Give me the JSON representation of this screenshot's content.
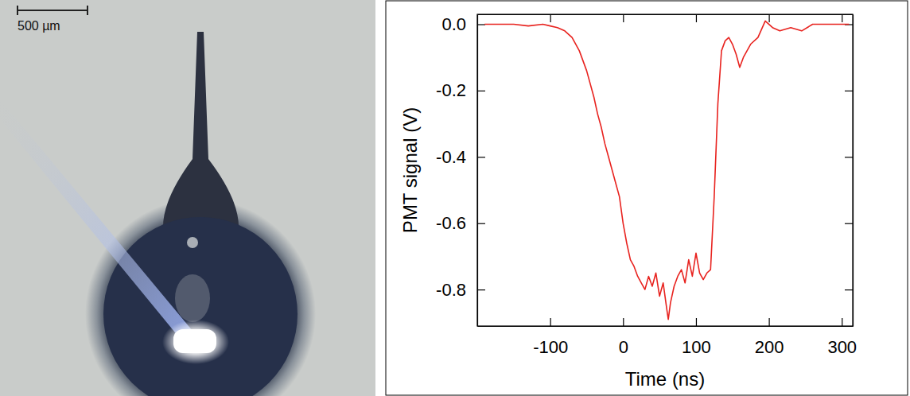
{
  "image": {
    "scale_bar_label": "500 µm"
  },
  "chart_data": {
    "type": "line",
    "x_label": "Time (ns)",
    "y_label": "PMT signal (V)",
    "xlim": [
      -200,
      315
    ],
    "ylim": [
      -0.91,
      0.03
    ],
    "xticks": [
      -100,
      0,
      100,
      200,
      300
    ],
    "yticks": [
      {
        "value": 0,
        "label": "0.0"
      },
      -0.2,
      -0.4,
      -0.6,
      -0.8
    ],
    "grid": false,
    "series": [
      {
        "name": "PMT signal",
        "color": "#e8231f",
        "x": [
          -190,
          -170,
          -150,
          -130,
          -110,
          -100,
          -90,
          -80,
          -70,
          -60,
          -50,
          -40,
          -35,
          -30,
          -25,
          -20,
          -15,
          -10,
          -5,
          0,
          5,
          10,
          15,
          20,
          25,
          30,
          35,
          40,
          45,
          50,
          55,
          60,
          62,
          65,
          70,
          75,
          80,
          85,
          90,
          95,
          100,
          105,
          110,
          115,
          120,
          125,
          130,
          135,
          140,
          145,
          150,
          155,
          160,
          165,
          170,
          175,
          185,
          195,
          205,
          215,
          230,
          245,
          260,
          280,
          300,
          310
        ],
        "values": [
          0,
          0,
          0,
          -0.005,
          0,
          -0.005,
          -0.01,
          -0.02,
          -0.04,
          -0.08,
          -0.14,
          -0.22,
          -0.27,
          -0.31,
          -0.36,
          -0.4,
          -0.44,
          -0.48,
          -0.52,
          -0.6,
          -0.66,
          -0.71,
          -0.73,
          -0.76,
          -0.78,
          -0.8,
          -0.76,
          -0.79,
          -0.75,
          -0.82,
          -0.78,
          -0.86,
          -0.89,
          -0.84,
          -0.79,
          -0.76,
          -0.74,
          -0.78,
          -0.71,
          -0.76,
          -0.69,
          -0.75,
          -0.77,
          -0.75,
          -0.74,
          -0.52,
          -0.24,
          -0.08,
          -0.05,
          -0.04,
          -0.06,
          -0.09,
          -0.13,
          -0.1,
          -0.08,
          -0.06,
          -0.04,
          0.01,
          -0.01,
          -0.02,
          -0.01,
          -0.02,
          0,
          0,
          0,
          0
        ]
      }
    ]
  }
}
